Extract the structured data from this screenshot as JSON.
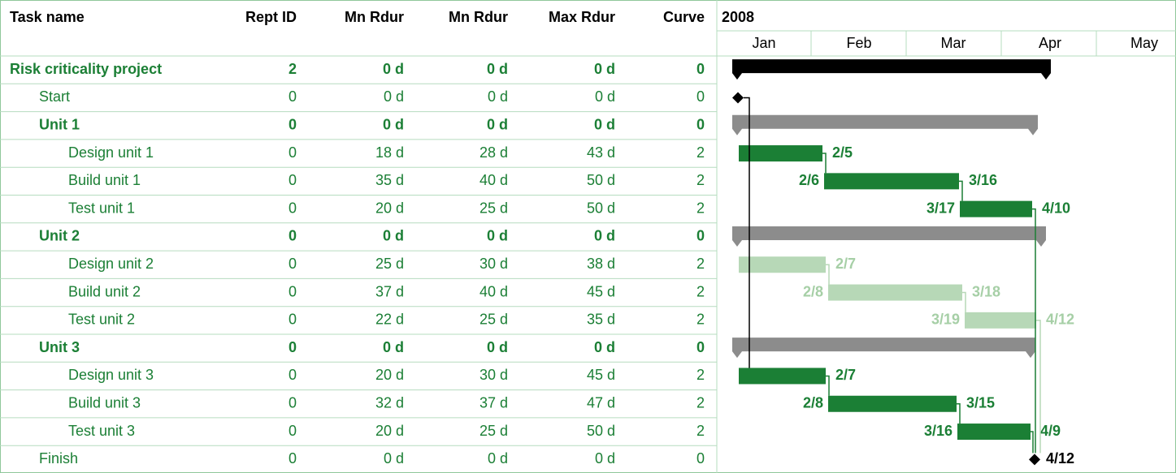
{
  "table": {
    "columns": [
      "Task name",
      "Rept ID",
      "Mn Rdur",
      "Mn Rdur",
      "Max Rdur",
      "Curve"
    ],
    "rows": [
      {
        "cells": [
          "Risk criticality project",
          "2",
          "0 d",
          "0 d",
          "0 d",
          "0"
        ],
        "level": 0,
        "bold": true
      },
      {
        "cells": [
          "Start",
          "0",
          "0 d",
          "0 d",
          "0 d",
          "0"
        ],
        "level": 1,
        "bold": false
      },
      {
        "cells": [
          "Unit 1",
          "0",
          "0 d",
          "0 d",
          "0 d",
          "0"
        ],
        "level": 1,
        "bold": true
      },
      {
        "cells": [
          "Design unit 1",
          "0",
          "18 d",
          "28 d",
          "43 d",
          "2"
        ],
        "level": 2,
        "bold": false
      },
      {
        "cells": [
          "Build unit 1",
          "0",
          "35 d",
          "40 d",
          "50 d",
          "2"
        ],
        "level": 2,
        "bold": false
      },
      {
        "cells": [
          "Test unit 1",
          "0",
          "20 d",
          "25 d",
          "50 d",
          "2"
        ],
        "level": 2,
        "bold": false
      },
      {
        "cells": [
          "Unit 2",
          "0",
          "0 d",
          "0 d",
          "0 d",
          "0"
        ],
        "level": 1,
        "bold": true
      },
      {
        "cells": [
          "Design unit 2",
          "0",
          "25 d",
          "30 d",
          "38 d",
          "2"
        ],
        "level": 2,
        "bold": false
      },
      {
        "cells": [
          "Build unit 2",
          "0",
          "37 d",
          "40 d",
          "45 d",
          "2"
        ],
        "level": 2,
        "bold": false
      },
      {
        "cells": [
          "Test unit 2",
          "0",
          "22 d",
          "25 d",
          "35 d",
          "2"
        ],
        "level": 2,
        "bold": false
      },
      {
        "cells": [
          "Unit 3",
          "0",
          "0 d",
          "0 d",
          "0 d",
          "0"
        ],
        "level": 1,
        "bold": true
      },
      {
        "cells": [
          "Design unit 3",
          "0",
          "20 d",
          "30 d",
          "45 d",
          "2"
        ],
        "level": 2,
        "bold": false
      },
      {
        "cells": [
          "Build unit 3",
          "0",
          "32 d",
          "37 d",
          "47 d",
          "2"
        ],
        "level": 2,
        "bold": false
      },
      {
        "cells": [
          "Test unit 3",
          "0",
          "20 d",
          "25 d",
          "50 d",
          "2"
        ],
        "level": 2,
        "bold": false
      },
      {
        "cells": [
          "Finish",
          "0",
          "0 d",
          "0 d",
          "0 d",
          "0"
        ],
        "level": 1,
        "bold": false
      }
    ]
  },
  "gantt": {
    "year": "2008",
    "months": [
      "Jan",
      "Feb",
      "Mar",
      "Apr",
      "May"
    ],
    "bars": [
      {
        "style": "project"
      },
      {
        "style": "milestone"
      },
      {
        "style": "summary"
      },
      {
        "style": "critical",
        "end": "2/5"
      },
      {
        "style": "critical",
        "start": "2/6",
        "end": "3/16"
      },
      {
        "style": "critical",
        "start": "3/17",
        "end": "4/10"
      },
      {
        "style": "summary"
      },
      {
        "style": "noncritical",
        "end": "2/7"
      },
      {
        "style": "noncritical",
        "start": "2/8",
        "end": "3/18"
      },
      {
        "style": "noncritical",
        "start": "3/19",
        "end": "4/12"
      },
      {
        "style": "summary"
      },
      {
        "style": "critical",
        "end": "2/7"
      },
      {
        "style": "critical",
        "start": "2/8",
        "end": "3/15"
      },
      {
        "style": "critical",
        "start": "3/16",
        "end": "4/9"
      },
      {
        "style": "milestone",
        "end": "4/12"
      }
    ]
  }
}
